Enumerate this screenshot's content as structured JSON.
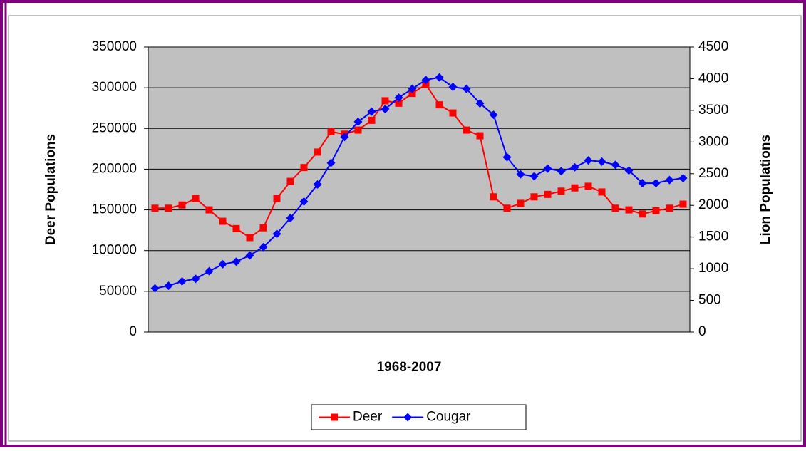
{
  "chart_data": {
    "type": "line",
    "x_label": "1968-2007",
    "y_label": "Deer Populations",
    "y2_label": "Lion Populations",
    "ylim": [
      0,
      350000
    ],
    "yticks": [
      0,
      50000,
      100000,
      150000,
      200000,
      250000,
      300000,
      350000
    ],
    "y2lim": [
      0,
      4500
    ],
    "y2ticks": [
      0,
      500,
      1000,
      1500,
      2000,
      2500,
      3000,
      3500,
      4000,
      4500
    ],
    "grid": true,
    "plot_background": "#c0c0c0",
    "legend": "bottom",
    "series": [
      {
        "name": "Deer",
        "color": "#ff0000",
        "marker": "square",
        "values": [
          152000,
          152000,
          156000,
          164000,
          150000,
          136000,
          127000,
          116000,
          128000,
          164000,
          185000,
          202000,
          221000,
          246000,
          243000,
          248000,
          260000,
          284000,
          281000,
          293000,
          304000,
          279000,
          269000,
          248000,
          241000,
          166000,
          152000,
          158000,
          166000,
          169000,
          173000,
          177000,
          179000,
          172000,
          152000,
          150000,
          145000,
          149000,
          152000,
          157000
        ]
      },
      {
        "name": "Cougar",
        "color": "#0000ff",
        "marker": "diamond",
        "axis": "y2",
        "values": [
          690,
          730,
          800,
          840,
          960,
          1070,
          1110,
          1210,
          1340,
          1550,
          1800,
          2060,
          2330,
          2670,
          3080,
          3320,
          3480,
          3520,
          3700,
          3840,
          3980,
          4020,
          3870,
          3840,
          3610,
          3430,
          2760,
          2490,
          2460,
          2580,
          2540,
          2600,
          2710,
          2690,
          2640,
          2550,
          2350,
          2350,
          2400,
          2430
        ]
      }
    ]
  }
}
